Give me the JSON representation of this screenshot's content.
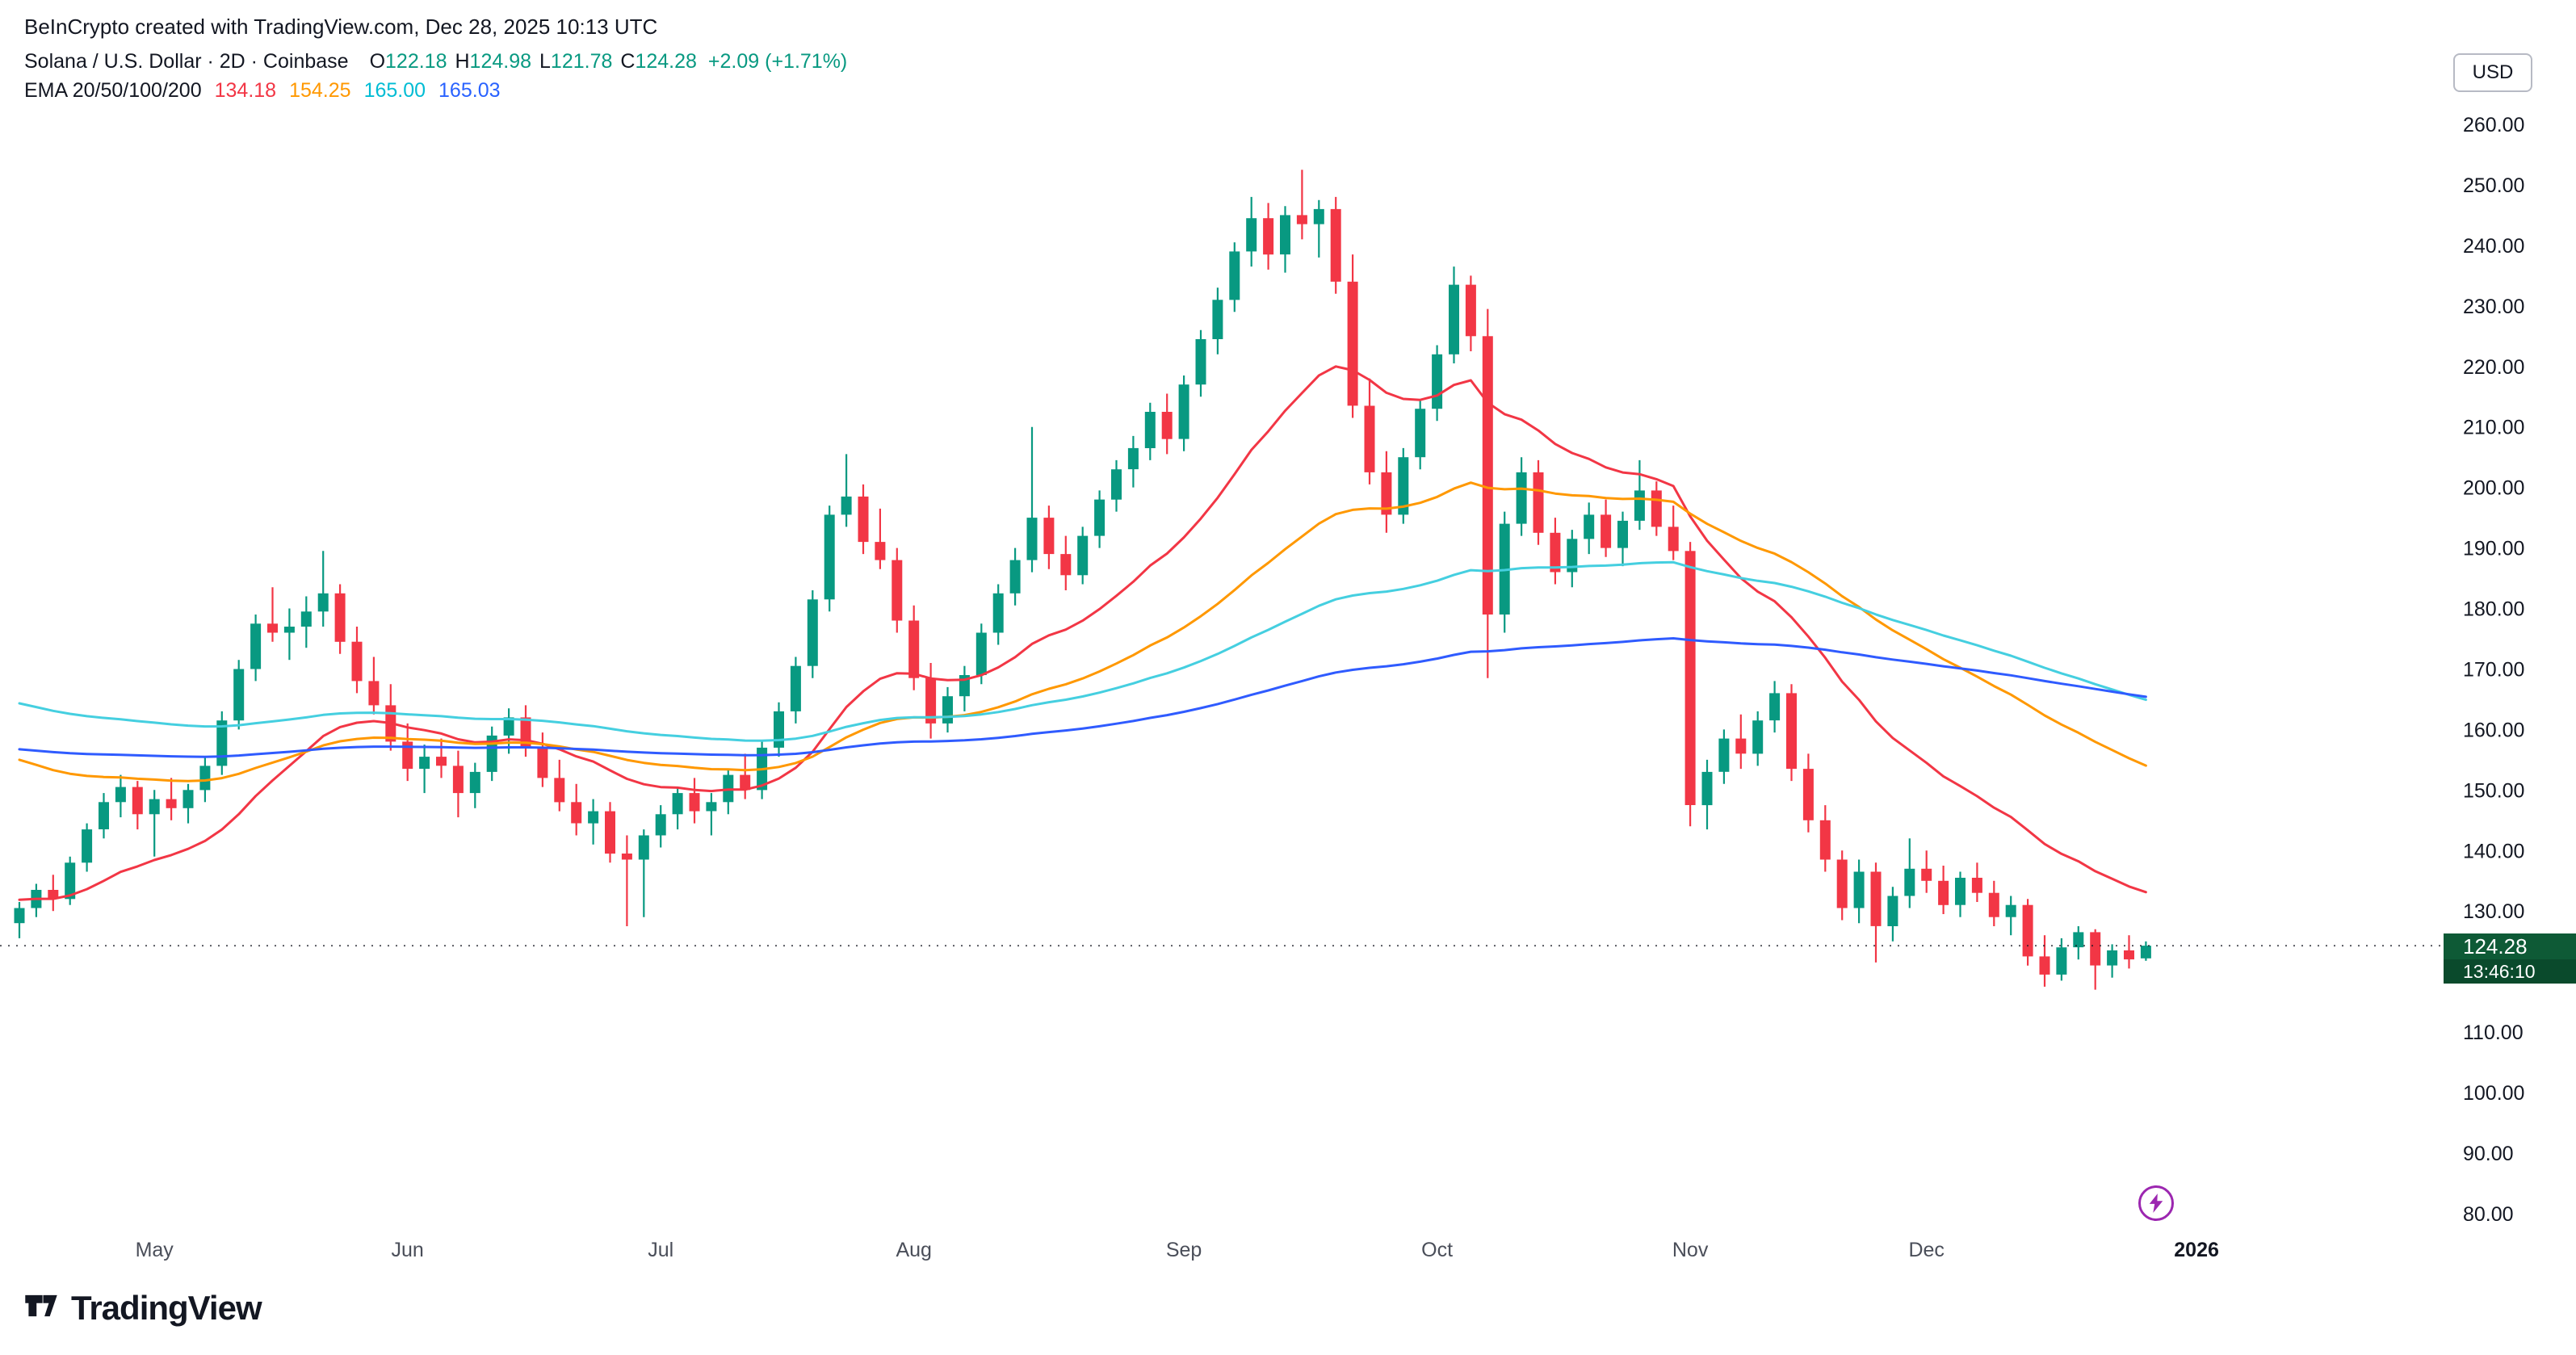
{
  "header": {
    "attribution": "BeInCrypto created with TradingView.com, Dec 28, 2025 10:13 UTC",
    "symbol_title": "Solana / U.S. Dollar · 2D · Coinbase",
    "ohlc": {
      "open_label": "O",
      "open": "122.18",
      "high_label": "H",
      "high": "124.98",
      "low_label": "L",
      "low": "121.78",
      "close_label": "C",
      "close": "124.28",
      "change": "+2.09 (+1.71%)"
    },
    "indicator": {
      "label": "EMA 20/50/100/200",
      "values": [
        {
          "text": "134.18",
          "color": "#F23645"
        },
        {
          "text": "154.25",
          "color": "#FF9800"
        },
        {
          "text": "165.00",
          "color": "#00BCD4"
        },
        {
          "text": "165.03",
          "color": "#2962FF"
        }
      ]
    }
  },
  "price_axis": {
    "currency": "USD",
    "last_price": "124.28",
    "countdown": "13:46:10"
  },
  "time_axis": {
    "ticks": [
      {
        "label": "May",
        "index": 8
      },
      {
        "label": "Jun",
        "index": 23
      },
      {
        "label": "Jul",
        "index": 38
      },
      {
        "label": "Aug",
        "index": 53
      },
      {
        "label": "Sep",
        "index": 69
      },
      {
        "label": "Oct",
        "index": 84
      },
      {
        "label": "Nov",
        "index": 99
      },
      {
        "label": "Dec",
        "index": 113
      },
      {
        "label": "2026",
        "index": 129,
        "bold": true
      }
    ]
  },
  "chart_data": {
    "type": "candlestick",
    "title": "Solana / U.S. Dollar, 2D, Coinbase",
    "interval": "2D",
    "currency": "USD",
    "grid": false,
    "ylim": [
      78,
      262
    ],
    "y_ticks": [
      260,
      250,
      240,
      230,
      220,
      210,
      200,
      190,
      180,
      170,
      160,
      150,
      140,
      130,
      110,
      100,
      90,
      80
    ],
    "current_price": 124.28,
    "up_color": "#089981",
    "down_color": "#F23645",
    "candles_ohlc": [
      [
        128.0,
        131.5,
        125.5,
        130.5
      ],
      [
        130.5,
        134.5,
        129.0,
        133.5
      ],
      [
        133.5,
        136.0,
        130.0,
        132.0
      ],
      [
        132.0,
        139.0,
        131.0,
        138.0
      ],
      [
        138.0,
        144.5,
        136.5,
        143.5
      ],
      [
        143.5,
        149.5,
        142.0,
        148.0
      ],
      [
        148.0,
        152.5,
        145.5,
        150.5
      ],
      [
        150.5,
        151.5,
        143.5,
        146.0
      ],
      [
        146.0,
        150.0,
        139.0,
        148.5
      ],
      [
        148.5,
        152.0,
        145.0,
        147.0
      ],
      [
        147.0,
        151.0,
        144.5,
        150.0
      ],
      [
        150.0,
        155.5,
        148.0,
        154.0
      ],
      [
        154.0,
        163.0,
        152.5,
        161.5
      ],
      [
        161.5,
        171.5,
        160.0,
        170.0
      ],
      [
        170.0,
        179.0,
        168.0,
        177.5
      ],
      [
        177.5,
        183.5,
        174.5,
        176.0
      ],
      [
        176.0,
        180.0,
        171.5,
        177.0
      ],
      [
        177.0,
        182.0,
        173.5,
        179.5
      ],
      [
        179.5,
        189.5,
        177.0,
        182.5
      ],
      [
        182.5,
        184.0,
        172.5,
        174.5
      ],
      [
        174.5,
        177.0,
        166.0,
        168.0
      ],
      [
        168.0,
        172.0,
        162.5,
        164.0
      ],
      [
        164.0,
        167.5,
        156.5,
        158.0
      ],
      [
        158.0,
        161.0,
        151.5,
        153.5
      ],
      [
        153.5,
        157.5,
        149.5,
        155.5
      ],
      [
        155.5,
        158.5,
        152.0,
        154.0
      ],
      [
        154.0,
        156.5,
        145.5,
        149.5
      ],
      [
        149.5,
        154.5,
        147.0,
        153.0
      ],
      [
        153.0,
        160.5,
        151.5,
        159.0
      ],
      [
        159.0,
        163.5,
        156.0,
        162.0
      ],
      [
        162.0,
        164.0,
        155.5,
        157.0
      ],
      [
        157.0,
        159.5,
        150.5,
        152.0
      ],
      [
        152.0,
        155.0,
        146.5,
        148.0
      ],
      [
        148.0,
        151.0,
        142.5,
        144.5
      ],
      [
        144.5,
        148.5,
        141.0,
        146.5
      ],
      [
        146.5,
        148.0,
        138.0,
        139.5
      ],
      [
        139.5,
        142.5,
        127.5,
        138.5
      ],
      [
        138.5,
        143.5,
        129.0,
        142.5
      ],
      [
        142.5,
        147.5,
        140.5,
        146.0
      ],
      [
        146.0,
        150.5,
        143.5,
        149.5
      ],
      [
        149.5,
        152.0,
        144.5,
        146.5
      ],
      [
        146.5,
        149.5,
        142.5,
        148.0
      ],
      [
        148.0,
        153.5,
        146.0,
        152.5
      ],
      [
        152.5,
        156.0,
        148.5,
        150.0
      ],
      [
        150.0,
        158.0,
        148.5,
        157.0
      ],
      [
        157.0,
        164.5,
        155.5,
        163.0
      ],
      [
        163.0,
        172.0,
        161.0,
        170.5
      ],
      [
        170.5,
        183.0,
        168.5,
        181.5
      ],
      [
        181.5,
        197.0,
        179.5,
        195.5
      ],
      [
        195.5,
        205.5,
        193.5,
        198.5
      ],
      [
        198.5,
        200.5,
        189.0,
        191.0
      ],
      [
        191.0,
        196.5,
        186.5,
        188.0
      ],
      [
        188.0,
        190.0,
        176.0,
        178.0
      ],
      [
        178.0,
        180.5,
        166.5,
        168.5
      ],
      [
        168.5,
        171.0,
        158.5,
        161.0
      ],
      [
        161.0,
        167.0,
        159.5,
        165.5
      ],
      [
        165.5,
        170.5,
        163.0,
        169.0
      ],
      [
        169.0,
        177.5,
        167.5,
        176.0
      ],
      [
        176.0,
        184.0,
        174.0,
        182.5
      ],
      [
        182.5,
        190.0,
        180.5,
        188.0
      ],
      [
        188.0,
        210.0,
        186.0,
        195.0
      ],
      [
        195.0,
        197.0,
        186.5,
        189.0
      ],
      [
        189.0,
        192.0,
        183.0,
        185.5
      ],
      [
        185.5,
        193.5,
        184.0,
        192.0
      ],
      [
        192.0,
        199.5,
        190.0,
        198.0
      ],
      [
        198.0,
        204.5,
        196.0,
        203.0
      ],
      [
        203.0,
        208.5,
        200.0,
        206.5
      ],
      [
        206.5,
        214.0,
        204.5,
        212.5
      ],
      [
        212.5,
        215.5,
        205.5,
        208.0
      ],
      [
        208.0,
        218.5,
        206.0,
        217.0
      ],
      [
        217.0,
        226.0,
        215.0,
        224.5
      ],
      [
        224.5,
        233.0,
        222.0,
        231.0
      ],
      [
        231.0,
        240.5,
        229.0,
        239.0
      ],
      [
        239.0,
        248.0,
        236.5,
        244.5
      ],
      [
        244.5,
        247.0,
        236.0,
        238.5
      ],
      [
        238.5,
        246.5,
        235.5,
        245.0
      ],
      [
        245.0,
        252.5,
        241.0,
        243.5
      ],
      [
        243.5,
        247.5,
        238.0,
        246.0
      ],
      [
        246.0,
        248.0,
        232.0,
        234.0
      ],
      [
        234.0,
        238.5,
        211.5,
        213.5
      ],
      [
        213.5,
        218.0,
        200.5,
        202.5
      ],
      [
        202.5,
        206.0,
        192.5,
        195.5
      ],
      [
        195.5,
        206.5,
        194.0,
        205.0
      ],
      [
        205.0,
        214.5,
        203.0,
        213.0
      ],
      [
        213.0,
        223.5,
        211.0,
        222.0
      ],
      [
        222.0,
        236.5,
        220.5,
        233.5
      ],
      [
        233.5,
        235.0,
        222.5,
        225.0
      ],
      [
        225.0,
        229.5,
        168.5,
        179.0
      ],
      [
        179.0,
        196.0,
        176.0,
        194.0
      ],
      [
        194.0,
        205.0,
        192.0,
        202.5
      ],
      [
        202.5,
        204.5,
        190.5,
        192.5
      ],
      [
        192.5,
        195.0,
        184.0,
        186.0
      ],
      [
        186.0,
        193.0,
        183.5,
        191.5
      ],
      [
        191.5,
        197.5,
        189.0,
        195.5
      ],
      [
        195.5,
        198.0,
        188.5,
        190.0
      ],
      [
        190.0,
        196.0,
        187.0,
        194.5
      ],
      [
        194.5,
        204.5,
        193.0,
        199.5
      ],
      [
        199.5,
        201.0,
        192.0,
        193.5
      ],
      [
        193.5,
        197.0,
        188.0,
        189.5
      ],
      [
        189.5,
        191.0,
        144.0,
        147.5
      ],
      [
        147.5,
        155.0,
        143.5,
        153.0
      ],
      [
        153.0,
        160.0,
        151.0,
        158.5
      ],
      [
        158.5,
        162.5,
        153.5,
        156.0
      ],
      [
        156.0,
        163.0,
        154.0,
        161.5
      ],
      [
        161.5,
        168.0,
        159.5,
        166.0
      ],
      [
        166.0,
        167.5,
        151.5,
        153.5
      ],
      [
        153.5,
        156.0,
        143.0,
        145.0
      ],
      [
        145.0,
        147.5,
        136.5,
        138.5
      ],
      [
        138.5,
        140.0,
        128.5,
        130.5
      ],
      [
        130.5,
        138.5,
        128.0,
        136.5
      ],
      [
        136.5,
        138.0,
        121.5,
        127.5
      ],
      [
        127.5,
        134.0,
        125.0,
        132.5
      ],
      [
        132.5,
        142.0,
        130.5,
        137.0
      ],
      [
        137.0,
        140.0,
        133.0,
        135.0
      ],
      [
        135.0,
        137.5,
        129.5,
        131.0
      ],
      [
        131.0,
        136.5,
        129.0,
        135.5
      ],
      [
        135.5,
        138.0,
        131.5,
        133.0
      ],
      [
        133.0,
        135.0,
        127.5,
        129.0
      ],
      [
        129.0,
        132.5,
        126.0,
        131.0
      ],
      [
        131.0,
        132.0,
        121.0,
        122.5
      ],
      [
        122.5,
        126.0,
        117.5,
        119.5
      ],
      [
        119.5,
        125.5,
        118.5,
        124.0
      ],
      [
        124.0,
        127.5,
        122.0,
        126.5
      ],
      [
        126.5,
        127.0,
        117.0,
        121.0
      ],
      [
        121.0,
        124.5,
        119.0,
        123.5
      ],
      [
        123.5,
        126.0,
        120.5,
        122.0
      ],
      [
        122.18,
        124.98,
        121.78,
        124.28
      ]
    ],
    "emas": [
      {
        "period": 20,
        "color": "#F23645",
        "seed": 132,
        "current": 134.18
      },
      {
        "period": 50,
        "color": "#FF9800",
        "seed": 156,
        "current": 154.25
      },
      {
        "period": 100,
        "color": "#45CFE0",
        "seed": 165,
        "current": 165.0
      },
      {
        "period": 200,
        "color": "#2F5BFF",
        "seed": 157,
        "current": 165.03
      }
    ]
  },
  "footer": {
    "brand": "TradingView"
  },
  "misc": {
    "flash_icon_color": "#9C27B0",
    "text_color": "#131722",
    "axis_text_color": "#4a4e59"
  }
}
